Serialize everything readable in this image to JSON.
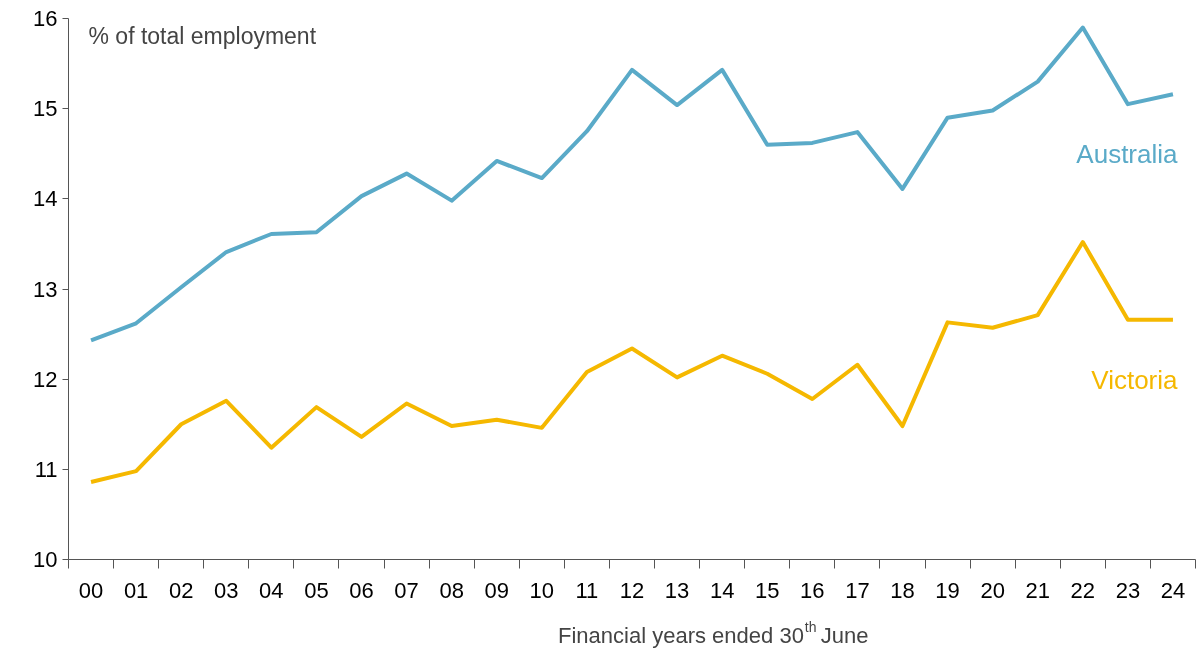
{
  "chart_data": {
    "type": "line",
    "ylabel": "% of total employment",
    "xlabel": "Financial years ended 30$^{th}$ June",
    "categories": [
      "00",
      "01",
      "02",
      "03",
      "04",
      "05",
      "06",
      "07",
      "08",
      "09",
      "10",
      "11",
      "12",
      "13",
      "14",
      "15",
      "16",
      "17",
      "18",
      "19",
      "20",
      "21",
      "22",
      "23",
      "24"
    ],
    "ylim": [
      10,
      16
    ],
    "yticks": [
      10,
      11,
      12,
      13,
      14,
      15,
      16
    ],
    "series": [
      {
        "name": "Australia",
        "color": "#5aaac8",
        "values": [
          12.43,
          12.62,
          13.02,
          13.41,
          13.61,
          13.63,
          14.03,
          14.28,
          13.98,
          14.42,
          14.23,
          14.75,
          15.43,
          15.04,
          15.43,
          14.6,
          14.62,
          14.74,
          14.11,
          14.9,
          14.98,
          15.3,
          15.9,
          15.05,
          15.16
        ]
      },
      {
        "name": "Victoria",
        "color": "#f5b800",
        "values": [
          10.86,
          10.98,
          11.5,
          11.76,
          11.24,
          11.69,
          11.36,
          11.73,
          11.48,
          11.55,
          11.46,
          12.08,
          12.34,
          12.02,
          12.26,
          12.06,
          11.78,
          12.16,
          11.48,
          12.63,
          12.57,
          12.71,
          13.52,
          12.66,
          12.66
        ]
      }
    ]
  }
}
